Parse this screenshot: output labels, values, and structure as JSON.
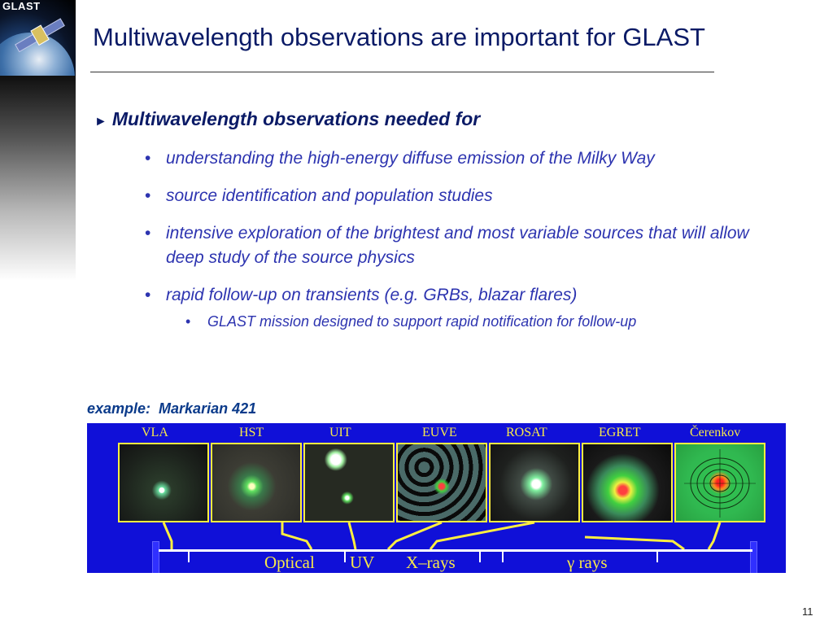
{
  "logo": {
    "text": "GLAST"
  },
  "title": "Multiwavelength observations are important for GLAST",
  "main_bullet": {
    "marker": "►",
    "text": "Multiwavelength observations needed for"
  },
  "sub_bullets": [
    {
      "marker": "•",
      "text": "understanding the high-energy diffuse emission of the Milky Way"
    },
    {
      "marker": "•",
      "text": "source identification and population studies"
    },
    {
      "marker": "•",
      "text": "intensive exploration of the brightest and most variable sources that will allow deep study of the source physics"
    },
    {
      "marker": "•",
      "text": "rapid follow-up on transients (e.g. GRBs, blazar flares)"
    }
  ],
  "sub_sub_bullet": {
    "marker": "•",
    "text": "GLAST mission designed to support rapid notification for follow-up"
  },
  "example_label": "example:  Markarian 421",
  "figure": {
    "instrument_labels": [
      "VLA",
      "HST",
      "UIT",
      "EUVE",
      "ROSAT",
      "EGRET",
      "Čerenkov"
    ],
    "band_labels": [
      "Optical",
      "UV",
      "X–rays",
      "γ rays"
    ],
    "colors": {
      "background": "#1010d8",
      "label": "#f7e84a",
      "frame": "#ffef40"
    }
  },
  "page_number": "11"
}
